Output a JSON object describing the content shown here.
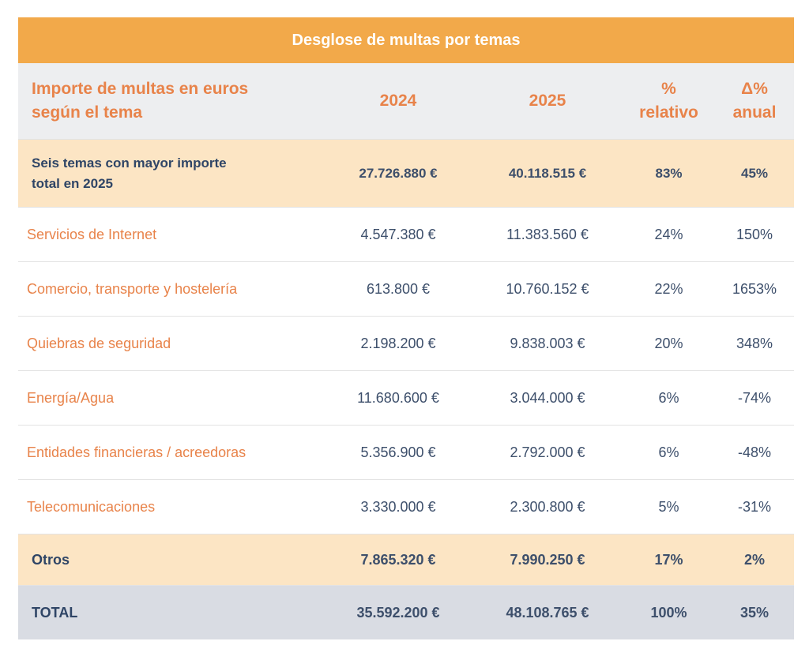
{
  "title": "Desglose de multas por temas",
  "table": {
    "header": [
      "Importe de multas en euros\nsegún el tema",
      "2024",
      "2025",
      "%\nrelativo",
      "Δ%\nanual"
    ],
    "rows": [
      [
        "Seis temas con mayor importe\ntotal en 2025",
        "27.726.880 €",
        "40.118.515 €",
        "83%",
        "45%"
      ],
      [
        "Servicios de Internet",
        "4.547.380 €",
        "11.383.560 €",
        "24%",
        "150%"
      ],
      [
        "Comercio, transporte y hostelería",
        "613.800 €",
        "10.760.152 €",
        "22%",
        "1653%"
      ],
      [
        "Quiebras de seguridad",
        "2.198.200 €",
        "9.838.003 €",
        "20%",
        "348%"
      ],
      [
        "Energía/Agua",
        "11.680.600 €",
        "3.044.000 €",
        "6%",
        "-74%"
      ],
      [
        "Entidades financieras / acreedoras",
        "5.356.900 €",
        "2.792.000 €",
        "6%",
        "-48%"
      ],
      [
        "Telecomunicaciones",
        "3.330.000 €",
        "2.300.800 €",
        "5%",
        "-31%"
      ],
      [
        "Otros",
        "7.865.320 €",
        "7.990.250 €",
        "17%",
        "2%"
      ],
      [
        "TOTAL",
        "35.592.200 €",
        "48.108.765 €",
        "100%",
        "35%"
      ]
    ]
  }
}
